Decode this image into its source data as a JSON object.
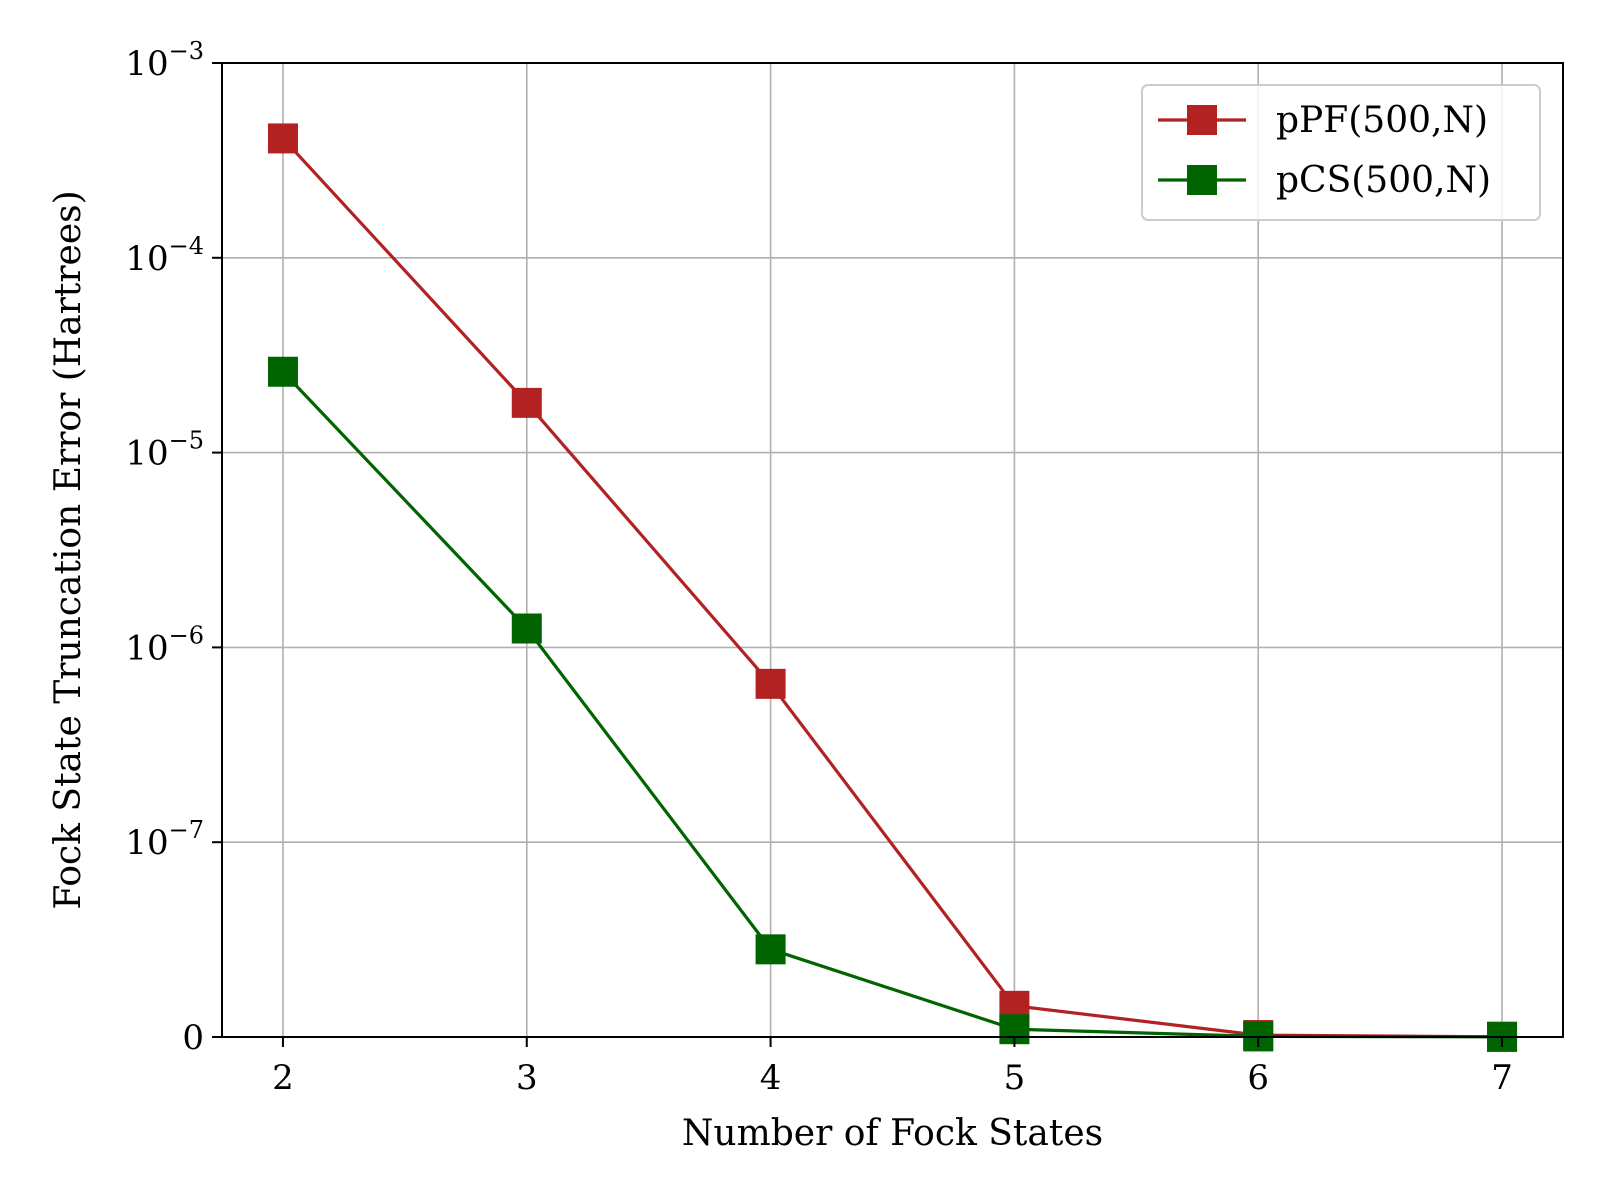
{
  "chart_data": {
    "type": "line",
    "title": "",
    "xlabel": "Number of Fock States",
    "ylabel": "Fock State Truncation Error (Hartrees)",
    "yscale": "symlog",
    "linthresh": 1e-07,
    "xlim": [
      1.75,
      7.25
    ],
    "ylim": [
      0,
      0.001
    ],
    "grid": true,
    "legend_position": "upper right",
    "x": [
      2,
      3,
      4,
      5,
      6,
      7
    ],
    "x_ticks": [
      {
        "value": 2,
        "label": "2"
      },
      {
        "value": 3,
        "label": "3"
      },
      {
        "value": 4,
        "label": "4"
      },
      {
        "value": 5,
        "label": "5"
      },
      {
        "value": 6,
        "label": "6"
      },
      {
        "value": 7,
        "label": "7"
      }
    ],
    "y_ticks": [
      {
        "value": 0,
        "base": "0",
        "exp": ""
      },
      {
        "value": 1e-07,
        "base": "10",
        "exp": "−7"
      },
      {
        "value": 1e-06,
        "base": "10",
        "exp": "−6"
      },
      {
        "value": 1e-05,
        "base": "10",
        "exp": "−5"
      },
      {
        "value": 0.0001,
        "base": "10",
        "exp": "−4"
      },
      {
        "value": 0.001,
        "base": "10",
        "exp": "−3"
      }
    ],
    "series": [
      {
        "name": "pPF(500,N)",
        "color": "#b22222",
        "marker": "square",
        "values": [
          0.00041,
          1.8e-05,
          6.5e-07,
          1.6e-08,
          1e-09,
          1e-10
        ]
      },
      {
        "name": "pCS(500,N)",
        "color": "#006400",
        "marker": "square",
        "values": [
          2.6e-05,
          1.25e-06,
          4.5e-08,
          4e-09,
          3e-10,
          1e-10
        ]
      }
    ]
  }
}
